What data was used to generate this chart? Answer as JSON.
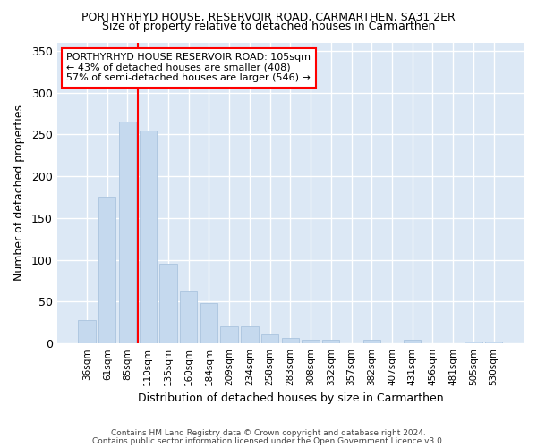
{
  "title": "PORTHYRHYD HOUSE, RESERVOIR ROAD, CARMARTHEN, SA31 2ER",
  "subtitle": "Size of property relative to detached houses in Carmarthen",
  "xlabel": "Distribution of detached houses by size in Carmarthen",
  "ylabel": "Number of detached properties",
  "categories": [
    "36sqm",
    "61sqm",
    "85sqm",
    "110sqm",
    "135sqm",
    "160sqm",
    "184sqm",
    "209sqm",
    "234sqm",
    "258sqm",
    "283sqm",
    "308sqm",
    "332sqm",
    "357sqm",
    "382sqm",
    "407sqm",
    "431sqm",
    "456sqm",
    "481sqm",
    "505sqm",
    "530sqm"
  ],
  "values": [
    28,
    176,
    265,
    255,
    95,
    62,
    48,
    20,
    20,
    11,
    7,
    5,
    4,
    0,
    5,
    0,
    4,
    0,
    0,
    2,
    2
  ],
  "bar_color": "#c5d9ee",
  "bar_edge_color": "#aac4de",
  "red_line_x": 2.5,
  "annotation_line1": "PORTHYRHYD HOUSE RESERVOIR ROAD: 105sqm",
  "annotation_line2": "← 43% of detached houses are smaller (408)",
  "annotation_line3": "57% of semi-detached houses are larger (546) →",
  "ylim": [
    0,
    360
  ],
  "yticks": [
    0,
    50,
    100,
    150,
    200,
    250,
    300,
    350
  ],
  "footer_line1": "Contains HM Land Registry data © Crown copyright and database right 2024.",
  "footer_line2": "Contains public sector information licensed under the Open Government Licence v3.0.",
  "fig_bg_color": "#ffffff",
  "plot_bg_color": "#dce8f5"
}
